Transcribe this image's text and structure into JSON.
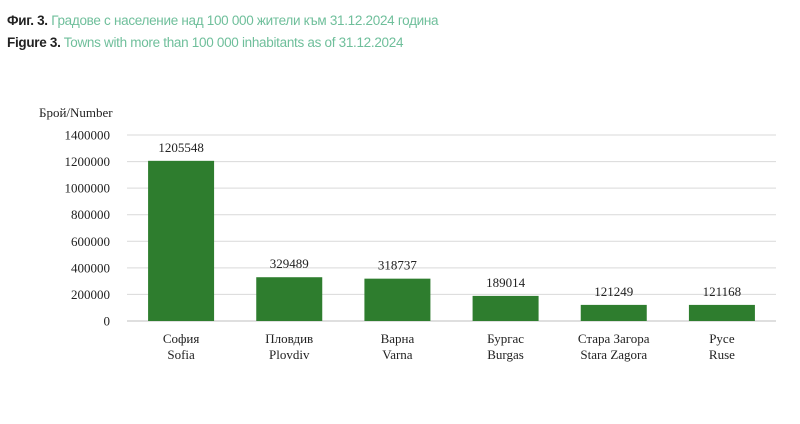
{
  "figure": {
    "title_bg_prefix": "Фиг. 3.",
    "title_bg_rest": "Градове с население над 100 000 жители към 31.12.2024 година",
    "title_en_prefix": "Figure 3.",
    "title_en_rest": "Towns with more than 100 000 inhabitants as of 31.12.2024"
  },
  "colors": {
    "bar": "#2e7d2e",
    "title_accent": "#6fbf9b",
    "gridline": "#d9d9d9"
  },
  "chart_data": {
    "type": "bar",
    "title": "Towns with more than 100 000 inhabitants as of 31.12.2024",
    "ylabel": "Брой/Number",
    "xlabel": "",
    "ylim": [
      0,
      1400000
    ],
    "yticks": [
      0,
      200000,
      400000,
      600000,
      800000,
      1000000,
      1200000,
      1400000
    ],
    "grid": true,
    "categories": [
      {
        "bg": "София",
        "en": "Sofia"
      },
      {
        "bg": "Пловдив",
        "en": "Plovdiv"
      },
      {
        "bg": "Варна",
        "en": "Varna"
      },
      {
        "bg": "Бургас",
        "en": "Burgas"
      },
      {
        "bg": "Стара Загора",
        "en": "Stara Zagora"
      },
      {
        "bg": "Русе",
        "en": "Ruse"
      }
    ],
    "values": [
      1205548,
      329489,
      318737,
      189014,
      121249,
      121168
    ]
  }
}
